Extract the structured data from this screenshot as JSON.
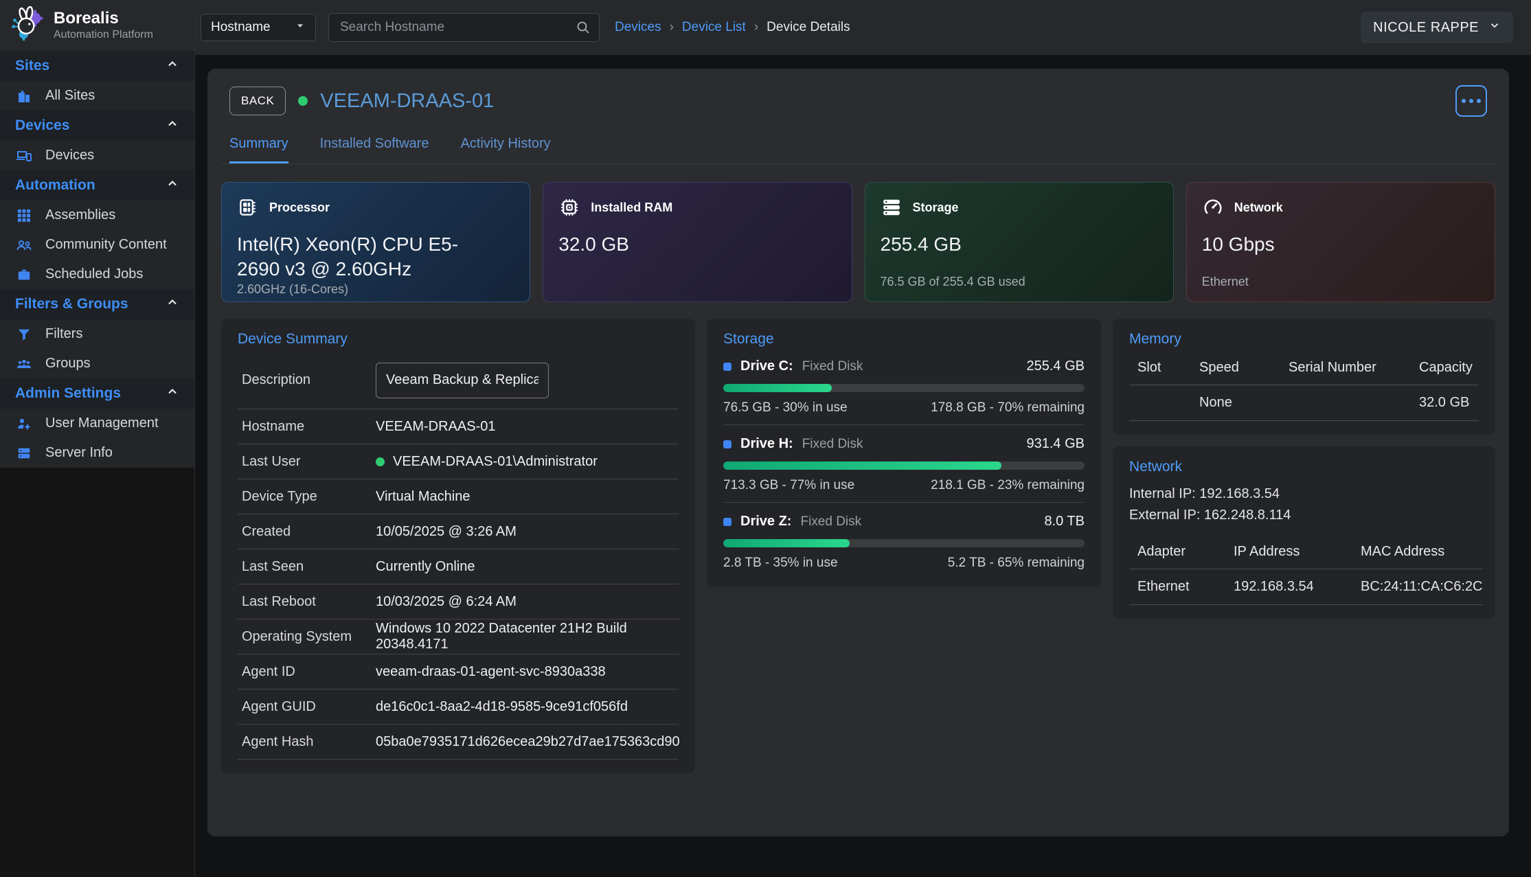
{
  "brand": {
    "name": "Borealis",
    "subtitle": "Automation Platform",
    "logo_icon": "rabbit-gear-logo"
  },
  "topbar": {
    "filter_dropdown": "Hostname",
    "search_placeholder": "Search Hostname",
    "breadcrumbs": [
      "Devices",
      "Device List",
      "Device Details"
    ],
    "user": "NICOLE RAPPE"
  },
  "sidebar": {
    "sections": [
      {
        "label": "Sites",
        "icon": "chevron-up-icon",
        "items": [
          {
            "label": "All Sites",
            "icon": "building-icon"
          }
        ]
      },
      {
        "label": "Devices",
        "icon": "chevron-up-icon",
        "items": [
          {
            "label": "Devices",
            "icon": "devices-icon"
          }
        ]
      },
      {
        "label": "Automation",
        "icon": "chevron-up-icon",
        "items": [
          {
            "label": "Assemblies",
            "icon": "grid-icon"
          },
          {
            "label": "Community Content",
            "icon": "people-icon"
          },
          {
            "label": "Scheduled Jobs",
            "icon": "briefcase-icon"
          }
        ]
      },
      {
        "label": "Filters & Groups",
        "icon": "chevron-up-icon",
        "items": [
          {
            "label": "Filters",
            "icon": "funnel-icon"
          },
          {
            "label": "Groups",
            "icon": "group-icon"
          }
        ]
      },
      {
        "label": "Admin Settings",
        "icon": "chevron-up-icon",
        "items": [
          {
            "label": "User Management",
            "icon": "user-gear-icon"
          },
          {
            "label": "Server Info",
            "icon": "server-icon"
          }
        ]
      }
    ]
  },
  "device": {
    "back_label": "BACK",
    "name": "VEEAM-DRAAS-01",
    "online": true,
    "tabs": [
      "Summary",
      "Installed Software",
      "Activity History"
    ],
    "active_tab": "Summary"
  },
  "stat_cards": [
    {
      "label": "Processor",
      "icon": "cpu-icon",
      "value": "Intel(R) Xeon(R) CPU E5-2690 v3 @ 2.60GHz",
      "subtitle": "2.60GHz (16-Cores)"
    },
    {
      "label": "Installed RAM",
      "icon": "ram-chip-icon",
      "value": "32.0 GB",
      "subtitle": ""
    },
    {
      "label": "Storage",
      "icon": "disk-stack-icon",
      "value": "255.4 GB",
      "subtitle": "76.5 GB of 255.4 GB used"
    },
    {
      "label": "Network",
      "icon": "gauge-icon",
      "value": "10 Gbps",
      "subtitle": "Ethernet"
    }
  ],
  "device_summary": {
    "title": "Device Summary",
    "description_label": "Description",
    "description_value": "Veeam Backup & Replication",
    "rows": [
      {
        "label": "Hostname",
        "value": "VEEAM-DRAAS-01"
      },
      {
        "label": "Last User",
        "value": "VEEAM-DRAAS-01\\Administrator"
      },
      {
        "label": "Device Type",
        "value": "Virtual Machine"
      },
      {
        "label": "Created",
        "value": "10/05/2025 @ 3:26 AM"
      },
      {
        "label": "Last Seen",
        "value": "Currently Online"
      },
      {
        "label": "Last Reboot",
        "value": "10/03/2025 @ 6:24 AM"
      },
      {
        "label": "Operating System",
        "value": "Windows 10 2022 Datacenter 21H2 Build 20348.4171"
      },
      {
        "label": "Agent ID",
        "value": "veeam-draas-01-agent-svc-8930a338"
      },
      {
        "label": "Agent GUID",
        "value": "de16c0c1-8aa2-4d18-9585-9ce91cf056fd"
      },
      {
        "label": "Agent Hash",
        "value": "05ba0e7935171d626ecea29b27d7ae175363cd90"
      }
    ]
  },
  "storage_panel": {
    "title": "Storage",
    "drives": [
      {
        "name": "Drive C:",
        "type": "Fixed Disk",
        "capacity": "255.4 GB",
        "used_pct": 30,
        "used_text": "76.5 GB - 30% in use",
        "free_text": "178.8 GB - 70% remaining"
      },
      {
        "name": "Drive H:",
        "type": "Fixed Disk",
        "capacity": "931.4 GB",
        "used_pct": 77,
        "used_text": "713.3 GB - 77% in use",
        "free_text": "218.1 GB - 23% remaining"
      },
      {
        "name": "Drive Z:",
        "type": "Fixed Disk",
        "capacity": "8.0 TB",
        "used_pct": 35,
        "used_text": "2.8 TB - 35% in use",
        "free_text": "5.2 TB - 65% remaining"
      }
    ]
  },
  "memory_panel": {
    "title": "Memory",
    "headers": [
      "Slot",
      "Speed",
      "Serial Number",
      "Capacity"
    ],
    "rows": [
      [
        "",
        "None",
        "",
        "32.0 GB"
      ]
    ]
  },
  "network_panel": {
    "title": "Network",
    "internal_ip": "Internal IP: 192.168.3.54",
    "external_ip": "External IP: 162.248.8.114",
    "headers": [
      "Adapter",
      "IP Address",
      "MAC Address"
    ],
    "rows": [
      [
        "Ethernet",
        "192.168.3.54",
        "BC:24:11:CA:C6:2C"
      ]
    ]
  },
  "colors": {
    "accent_blue": "#4f9cf9",
    "sidebar_header_blue": "#3e8ef7",
    "title_blue": "#5b9bd8",
    "status_green": "#2ecc71",
    "progress_green_start": "#0fa874",
    "progress_green_end": "#2bd78d",
    "card_processor": "#1d3a58",
    "card_ram": "#2e2746",
    "card_storage": "#1d392d",
    "card_network": "#352a33",
    "panel_bg": "#232427",
    "content_card_bg": "#2b2c2f",
    "page_bg": "#111214",
    "topbar_bg": "#26282b"
  }
}
